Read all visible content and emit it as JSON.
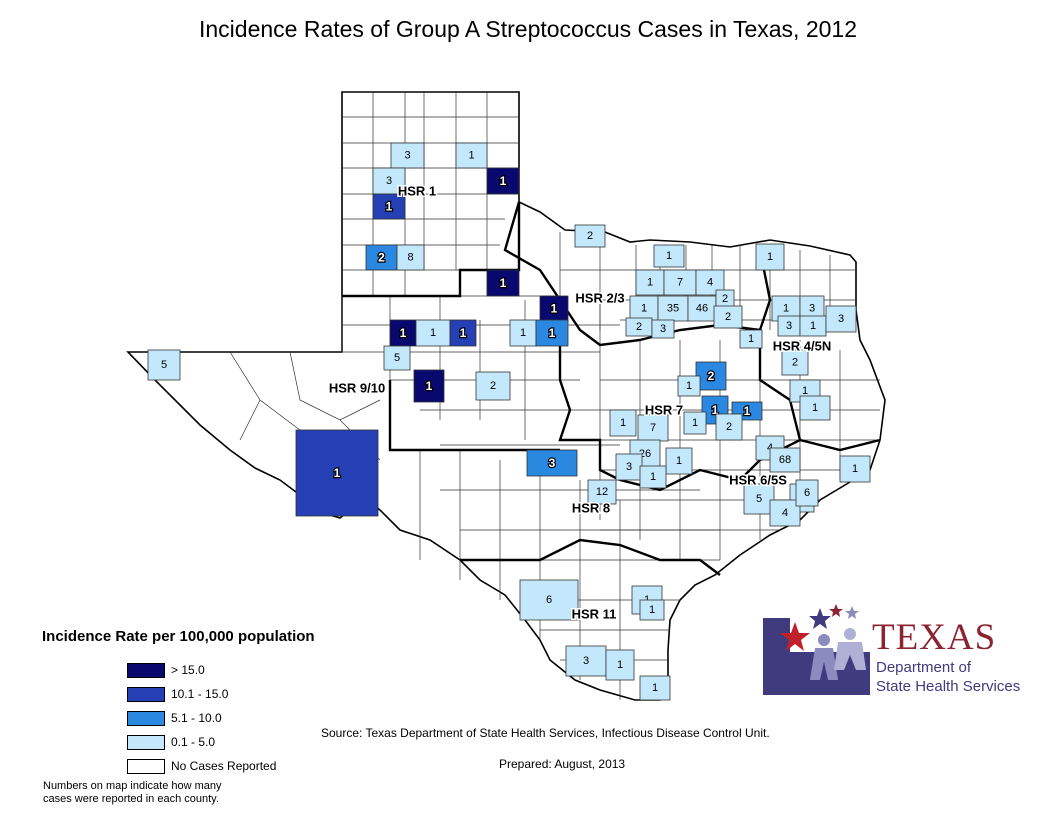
{
  "title": "Incidence Rates of Group A Streptococcus Cases in Texas, 2012",
  "colors": {
    "gt15": "#08086e",
    "r10_15": "#2440b4",
    "r5_10": "#2b88e0",
    "r0_5": "#c4e8fb",
    "none": "#ffffff",
    "logo_red": "#8b2332",
    "logo_blue": "#3f3b7e"
  },
  "regions": [
    {
      "label": "HSR 1"
    },
    {
      "label": "HSR 2/3"
    },
    {
      "label": "HSR 4/5N"
    },
    {
      "label": "HSR 9/10"
    },
    {
      "label": "HSR 7"
    },
    {
      "label": "HSR 6/5S"
    },
    {
      "label": "HSR 8"
    },
    {
      "label": "HSR 11"
    }
  ],
  "counties": [
    {
      "count": "3",
      "category": "0.1 - 5.0"
    },
    {
      "count": "1",
      "category": "0.1 - 5.0"
    },
    {
      "count": "3",
      "category": "0.1 - 5.0"
    },
    {
      "count": "1",
      "category": "> 15.0"
    },
    {
      "count": "1",
      "category": "10.1 - 15.0"
    },
    {
      "count": "2",
      "category": "5.1 - 10.0"
    },
    {
      "count": "8",
      "category": "0.1 - 5.0"
    },
    {
      "count": "1",
      "category": "> 15.0"
    },
    {
      "count": "2",
      "category": "0.1 - 5.0"
    },
    {
      "count": "1",
      "category": "0.1 - 5.0"
    },
    {
      "count": "1",
      "category": "0.1 - 5.0"
    },
    {
      "count": "7",
      "category": "0.1 - 5.0"
    },
    {
      "count": "4",
      "category": "0.1 - 5.0"
    },
    {
      "count": "1",
      "category": "0.1 - 5.0"
    },
    {
      "count": "1",
      "category": "0.1 - 5.0"
    },
    {
      "count": "35",
      "category": "0.1 - 5.0"
    },
    {
      "count": "46",
      "category": "0.1 - 5.0"
    },
    {
      "count": "2",
      "category": "0.1 - 5.0"
    },
    {
      "count": "2",
      "category": "0.1 - 5.0"
    },
    {
      "count": "3",
      "category": "0.1 - 5.0"
    },
    {
      "count": "2",
      "category": "0.1 - 5.0"
    },
    {
      "count": "1",
      "category": "> 15.0"
    },
    {
      "count": "1",
      "category": "> 15.0"
    },
    {
      "count": "1",
      "category": "0.1 - 5.0"
    },
    {
      "count": "1",
      "category": "10.1 - 15.0"
    },
    {
      "count": "1",
      "category": "0.1 - 5.0"
    },
    {
      "count": "1",
      "category": "5.1 - 10.0"
    },
    {
      "count": "1",
      "category": "0.1 - 5.0"
    },
    {
      "count": "1",
      "category": "0.1 - 5.0"
    },
    {
      "count": "3",
      "category": "0.1 - 5.0"
    },
    {
      "count": "3",
      "category": "0.1 - 5.0"
    },
    {
      "count": "1",
      "category": "0.1 - 5.0"
    },
    {
      "count": "3",
      "category": "0.1 - 5.0"
    },
    {
      "count": "1",
      "category": "0.1 - 5.0"
    },
    {
      "count": "2",
      "category": "0.1 - 5.0"
    },
    {
      "count": "5",
      "category": "0.1 - 5.0"
    },
    {
      "count": "5",
      "category": "0.1 - 5.0"
    },
    {
      "count": "1",
      "category": "> 15.0"
    },
    {
      "count": "2",
      "category": "0.1 - 5.0"
    },
    {
      "count": "2",
      "category": "5.1 - 10.0"
    },
    {
      "count": "1",
      "category": "0.1 - 5.0"
    },
    {
      "count": "1",
      "category": "5.1 - 10.0"
    },
    {
      "count": "1",
      "category": "5.1 - 10.0"
    },
    {
      "count": "2",
      "category": "0.1 - 5.0"
    },
    {
      "count": "1",
      "category": "0.1 - 5.0"
    },
    {
      "count": "1",
      "category": "0.1 - 5.0"
    },
    {
      "count": "7",
      "category": "0.1 - 5.0"
    },
    {
      "count": "1",
      "category": "0.1 - 5.0"
    },
    {
      "count": "26",
      "category": "0.1 - 5.0"
    },
    {
      "count": "3",
      "category": "0.1 - 5.0"
    },
    {
      "count": "1",
      "category": "0.1 - 5.0"
    },
    {
      "count": "1",
      "category": "0.1 - 5.0"
    },
    {
      "count": "3",
      "category": "5.1 - 10.0"
    },
    {
      "count": "1",
      "category": "10.1 - 15.0"
    },
    {
      "count": "12",
      "category": "0.1 - 5.0"
    },
    {
      "count": "4",
      "category": "0.1 - 5.0"
    },
    {
      "count": "68",
      "category": "0.1 - 5.0"
    },
    {
      "count": "1",
      "category": "0.1 - 5.0"
    },
    {
      "count": "5",
      "category": "0.1 - 5.0"
    },
    {
      "count": "6",
      "category": "0.1 - 5.0"
    },
    {
      "count": "4",
      "category": "0.1 - 5.0"
    },
    {
      "count": "6",
      "category": "0.1 - 5.0"
    },
    {
      "count": "6",
      "category": "0.1 - 5.0"
    },
    {
      "count": "1",
      "category": "0.1 - 5.0"
    },
    {
      "count": "1",
      "category": "0.1 - 5.0"
    },
    {
      "count": "3",
      "category": "0.1 - 5.0"
    },
    {
      "count": "1",
      "category": "0.1 - 5.0"
    },
    {
      "count": "1",
      "category": "0.1 - 5.0"
    }
  ],
  "legend": {
    "title": "Incidence Rate per 100,000 population",
    "items": [
      {
        "label": "> 15.0",
        "color": "#08086e"
      },
      {
        "label": "10.1 - 15.0",
        "color": "#2440b4"
      },
      {
        "label": "5.1 - 10.0",
        "color": "#2b88e0"
      },
      {
        "label": "0.1 - 5.0",
        "color": "#c4e8fb"
      },
      {
        "label": "No Cases Reported",
        "color": "#ffffff"
      }
    ],
    "note_line1": "Numbers on map indicate how many",
    "note_line2": "cases were reported in each county."
  },
  "source": "Source: Texas Department of State Health Services, Infectious Disease Control Unit.",
  "prepared": "Prepared: August, 2013",
  "logo": {
    "word": "TEXAS",
    "line1": "Department of",
    "line2": "State Health Services"
  }
}
